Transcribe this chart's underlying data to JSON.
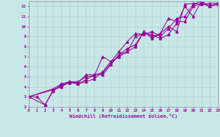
{
  "title": "",
  "xlabel": "Windchill (Refroidissement éolien,°C)",
  "ylabel": "",
  "bg_color": "#c8e8e8",
  "line_color": "#990099",
  "marker": "^",
  "xlim": [
    0,
    23
  ],
  "ylim": [
    2,
    12.5
  ],
  "xticks": [
    0,
    1,
    2,
    3,
    4,
    5,
    6,
    7,
    8,
    9,
    10,
    11,
    12,
    13,
    14,
    15,
    16,
    17,
    18,
    19,
    20,
    21,
    22,
    23
  ],
  "yticks": [
    2,
    3,
    4,
    5,
    6,
    7,
    8,
    9,
    10,
    11,
    12
  ],
  "series": [
    [
      0,
      3
    ],
    [
      1,
      3
    ],
    [
      2,
      2.2
    ],
    [
      3,
      3.7
    ],
    [
      4,
      4.1
    ],
    [
      5,
      4.4
    ],
    [
      6,
      4.3
    ],
    [
      7,
      4.5
    ],
    [
      8,
      4.8
    ],
    [
      9,
      5.5
    ],
    [
      10,
      6.5
    ],
    [
      11,
      7.0
    ],
    [
      12,
      7.5
    ],
    [
      13,
      8.0
    ],
    [
      14,
      9.5
    ],
    [
      15,
      9.0
    ],
    [
      16,
      9.3
    ],
    [
      17,
      10.0
    ],
    [
      18,
      9.5
    ],
    [
      19,
      12.2
    ],
    [
      20,
      12.3
    ],
    [
      21,
      12.2
    ],
    [
      22,
      12.3
    ],
    [
      23,
      12.3
    ]
  ],
  "series2": [
    [
      0,
      3
    ],
    [
      2,
      2.2
    ],
    [
      3,
      3.6
    ],
    [
      4,
      4.2
    ],
    [
      5,
      4.5
    ],
    [
      6,
      4.4
    ],
    [
      7,
      5.2
    ],
    [
      8,
      5.2
    ],
    [
      9,
      5.4
    ],
    [
      10,
      6.3
    ],
    [
      11,
      7.2
    ],
    [
      12,
      7.8
    ],
    [
      13,
      8.2
    ],
    [
      14,
      9.5
    ],
    [
      15,
      8.8
    ],
    [
      16,
      9.3
    ],
    [
      17,
      10.8
    ],
    [
      18,
      10.5
    ],
    [
      19,
      10.5
    ],
    [
      20,
      12.0
    ],
    [
      21,
      12.3
    ],
    [
      22,
      12.0
    ],
    [
      23,
      12.3
    ]
  ],
  "series3": [
    [
      0,
      3
    ],
    [
      3,
      3.8
    ],
    [
      4,
      4.3
    ],
    [
      5,
      4.5
    ],
    [
      6,
      4.3
    ],
    [
      7,
      4.7
    ],
    [
      8,
      5.2
    ],
    [
      9,
      5.2
    ],
    [
      10,
      6.2
    ],
    [
      11,
      7.2
    ],
    [
      12,
      7.5
    ],
    [
      13,
      9.0
    ],
    [
      14,
      9.3
    ],
    [
      15,
      9.2
    ],
    [
      16,
      8.8
    ],
    [
      17,
      9.2
    ],
    [
      18,
      10.3
    ],
    [
      19,
      12.0
    ],
    [
      20,
      11.0
    ],
    [
      21,
      12.5
    ],
    [
      22,
      12.0
    ],
    [
      23,
      12.3
    ]
  ],
  "series4": [
    [
      0,
      3
    ],
    [
      3,
      3.7
    ],
    [
      4,
      4.0
    ],
    [
      5,
      4.5
    ],
    [
      6,
      4.5
    ],
    [
      7,
      5.0
    ],
    [
      8,
      5.1
    ],
    [
      9,
      7.0
    ],
    [
      10,
      6.5
    ],
    [
      11,
      7.5
    ],
    [
      12,
      8.5
    ],
    [
      13,
      9.3
    ],
    [
      14,
      9.2
    ],
    [
      15,
      9.5
    ],
    [
      16,
      9.0
    ],
    [
      17,
      9.8
    ],
    [
      18,
      10.8
    ],
    [
      19,
      11.0
    ],
    [
      20,
      12.2
    ],
    [
      21,
      12.5
    ],
    [
      22,
      12.0
    ],
    [
      23,
      12.2
    ]
  ]
}
